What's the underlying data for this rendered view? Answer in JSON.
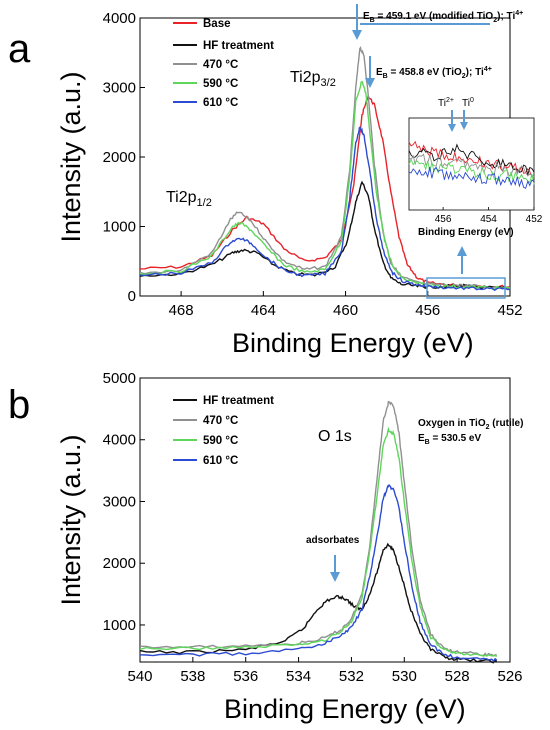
{
  "chart_data": [
    {
      "panel": "a",
      "type": "line",
      "xlabel": "Binding Energy (eV)",
      "ylabel": "Intensity (a.u.)",
      "xlim": [
        470,
        452
      ],
      "x_reversed": true,
      "ylim": [
        0,
        4000
      ],
      "x_ticks": [
        468,
        464,
        460,
        456,
        452
      ],
      "y_ticks": [
        0,
        1000,
        2000,
        3000,
        4000
      ],
      "legend_position": "top-left",
      "series": [
        {
          "name": "Base",
          "color": "#e8232a",
          "x": [
            470,
            468,
            466.5,
            465.5,
            464.8,
            464,
            463,
            462,
            461,
            460.2,
            459.6,
            459.2,
            458.9,
            458.6,
            458.2,
            457.8,
            457.4,
            457,
            456.5,
            456,
            455,
            454,
            453,
            452
          ],
          "y": [
            390,
            420,
            580,
            950,
            1130,
            1040,
            680,
            500,
            550,
            800,
            1600,
            2600,
            2880,
            2750,
            2250,
            1500,
            850,
            450,
            260,
            190,
            160,
            150,
            140,
            130
          ]
        },
        {
          "name": "HF treatment",
          "color": "#111111",
          "x": [
            470,
            468,
            466.5,
            465.5,
            465,
            464.3,
            463.5,
            462.5,
            461.5,
            460.5,
            459.9,
            459.5,
            459.2,
            458.9,
            458.6,
            458.2,
            457.8,
            457.3,
            456.5,
            456,
            455,
            454.5,
            454,
            453,
            452
          ],
          "y": [
            290,
            320,
            450,
            620,
            660,
            620,
            450,
            320,
            300,
            420,
            800,
            1350,
            1640,
            1450,
            980,
            500,
            260,
            170,
            140,
            130,
            140,
            150,
            140,
            120,
            110
          ]
        },
        {
          "name": "470 °C",
          "color": "#909090",
          "x": [
            470,
            468,
            466.5,
            465.6,
            465.2,
            464.6,
            463.8,
            463,
            462,
            461,
            460.2,
            459.8,
            459.5,
            459.3,
            459.1,
            458.9,
            458.6,
            458.2,
            457.8,
            457.3,
            456.5,
            456,
            455,
            454,
            453,
            452
          ],
          "y": [
            330,
            370,
            620,
            1100,
            1210,
            1080,
            760,
            500,
            380,
            420,
            850,
            1800,
            3000,
            3580,
            3450,
            2900,
            1900,
            950,
            480,
            280,
            190,
            170,
            160,
            150,
            130,
            120
          ]
        },
        {
          "name": "590 °C",
          "color": "#5dd65a",
          "x": [
            470,
            468,
            466.5,
            465.5,
            465.1,
            464.6,
            463.8,
            463,
            462,
            461,
            460.2,
            459.8,
            459.5,
            459.2,
            459,
            458.8,
            458.5,
            458.1,
            457.7,
            457.2,
            456.5,
            456,
            455,
            454,
            453,
            452
          ],
          "y": [
            320,
            360,
            580,
            1000,
            1050,
            950,
            680,
            450,
            340,
            380,
            780,
            1700,
            2800,
            3100,
            2900,
            2300,
            1500,
            800,
            420,
            250,
            180,
            160,
            140,
            130,
            120,
            110
          ]
        },
        {
          "name": "610 °C",
          "color": "#2c4bd1",
          "x": [
            470,
            468,
            466.5,
            465.6,
            465.1,
            464.6,
            463.8,
            463,
            462,
            461,
            460.2,
            459.8,
            459.5,
            459.3,
            459.1,
            458.8,
            458.5,
            458.1,
            457.7,
            457.2,
            456.5,
            456,
            455,
            454,
            453,
            452
          ],
          "y": [
            300,
            330,
            480,
            780,
            830,
            760,
            540,
            370,
            290,
            320,
            650,
            1400,
            2200,
            2440,
            2300,
            1750,
            1100,
            580,
            330,
            210,
            160,
            140,
            120,
            110,
            100,
            95
          ]
        }
      ],
      "annotations": {
        "peak_left": "Ti2p",
        "peak_left_sub": "1/2",
        "peak_right": "Ti2p",
        "peak_right_sub": "3/2",
        "eb1_pre": "E",
        "eb1_sub": "B",
        "eb1_post": " = 459.1 eV (modified TiO",
        "eb1_sub2": "2",
        "eb1_tail": "); Ti",
        "eb1_sup": "4+",
        "eb2_pre": "E",
        "eb2_sub": "B",
        "eb2_post": " = 458.8 eV (TiO",
        "eb2_sub2": "2",
        "eb2_tail": "); Ti",
        "eb2_sup": "4+"
      },
      "inset": {
        "xlabel": "Binding Energy (eV)",
        "x_ticks": [
          456,
          454,
          452
        ],
        "xlim": [
          457.5,
          452
        ],
        "label_ti2": "Ti",
        "label_ti2_sup": "2+",
        "label_ti0": "Ti",
        "label_ti0_sup": "0"
      }
    },
    {
      "panel": "b",
      "type": "line",
      "xlabel": "Binding Energy (eV)",
      "ylabel": "Intensity (a.u.)",
      "xlim": [
        540,
        526
      ],
      "x_reversed": true,
      "ylim": [
        400,
        5000
      ],
      "x_ticks": [
        540,
        538,
        536,
        534,
        532,
        530,
        528,
        526
      ],
      "y_ticks": [
        1000,
        2000,
        3000,
        4000,
        5000
      ],
      "legend_position": "top-left",
      "series": [
        {
          "name": "HF treatment",
          "color": "#111111",
          "x": [
            540,
            538,
            536,
            534.5,
            533.8,
            533.3,
            532.9,
            532.5,
            532.2,
            531.9,
            531.6,
            531.3,
            531,
            530.8,
            530.6,
            530.4,
            530.1,
            529.8,
            529.4,
            529,
            528.5,
            528,
            527,
            526.5
          ],
          "y": [
            560,
            560,
            600,
            740,
            950,
            1250,
            1400,
            1460,
            1420,
            1300,
            1250,
            1500,
            1900,
            2220,
            2300,
            2200,
            1800,
            1300,
            850,
            600,
            480,
            440,
            420,
            410
          ]
        },
        {
          "name": "470 °C",
          "color": "#909090",
          "x": [
            540,
            538,
            536,
            534,
            533,
            532.4,
            532,
            531.6,
            531.3,
            531,
            530.8,
            530.6,
            530.4,
            530.2,
            530,
            529.7,
            529.4,
            529,
            528.5,
            528,
            527,
            526.5
          ],
          "y": [
            640,
            640,
            660,
            700,
            790,
            920,
            1100,
            1500,
            2300,
            3500,
            4300,
            4600,
            4550,
            4100,
            3300,
            2200,
            1400,
            850,
            620,
            560,
            520,
            510
          ]
        },
        {
          "name": "590 °C",
          "color": "#5dd65a",
          "x": [
            540,
            538,
            536,
            534,
            533,
            532.4,
            532,
            531.6,
            531.3,
            531,
            530.8,
            530.6,
            530.4,
            530.2,
            530,
            529.7,
            529.4,
            529,
            528.5,
            528,
            527,
            526.5
          ],
          "y": [
            620,
            620,
            640,
            680,
            760,
            890,
            1060,
            1450,
            2200,
            3200,
            3900,
            4150,
            4100,
            3700,
            3000,
            2000,
            1300,
            800,
            600,
            540,
            500,
            490
          ]
        },
        {
          "name": "610 °C",
          "color": "#2c4bd1",
          "x": [
            540,
            538,
            536,
            534,
            533,
            532.4,
            532,
            531.6,
            531.3,
            531,
            530.8,
            530.6,
            530.4,
            530.2,
            530,
            529.7,
            529.4,
            529,
            528.5,
            528,
            527,
            526.5
          ],
          "y": [
            520,
            520,
            540,
            600,
            700,
            830,
            960,
            1250,
            1800,
            2500,
            3050,
            3250,
            3200,
            2900,
            2350,
            1600,
            1050,
            680,
            520,
            470,
            440,
            430
          ]
        }
      ],
      "annotations": {
        "peak": "O 1s",
        "adsorbates": "adsorbates",
        "oxygen_pre": "Oxygen in TiO",
        "oxygen_sub": "2",
        "oxygen_post": " (rutile)",
        "eb_pre": "E",
        "eb_sub": "B",
        "eb_post": " = 530.5 eV"
      }
    }
  ],
  "panel_letters": [
    "a",
    "b"
  ]
}
